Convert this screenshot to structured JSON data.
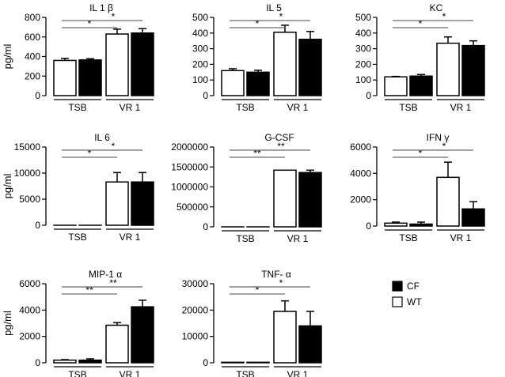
{
  "figure": {
    "y_unit_label": "pg/ml",
    "group_labels": [
      "TSB",
      "VR 1"
    ],
    "legend": [
      {
        "name": "CF",
        "color": "#000000"
      },
      {
        "name": "WT",
        "color": "#ffffff"
      }
    ]
  },
  "chart_data": [
    {
      "type": "bar",
      "title": "IL 1 β",
      "ylabel": "pg/ml",
      "ylim": [
        0,
        800
      ],
      "yticks": [
        0,
        200,
        400,
        600,
        800
      ],
      "categories": [
        "TSB",
        "VR 1"
      ],
      "series": [
        {
          "name": "WT",
          "values": [
            360,
            630
          ],
          "errors": [
            20,
            50
          ]
        },
        {
          "name": "CF",
          "values": [
            365,
            640
          ],
          "errors": [
            12,
            45
          ]
        }
      ],
      "significance": [
        {
          "label": "*",
          "from": "TSB",
          "to": "VR 1 WT"
        },
        {
          "label": "*",
          "from": "TSB",
          "to": "VR 1 CF"
        }
      ]
    },
    {
      "type": "bar",
      "title": "IL 5",
      "ylabel": "",
      "ylim": [
        0,
        500
      ],
      "yticks": [
        0,
        100,
        200,
        300,
        400,
        500
      ],
      "categories": [
        "TSB",
        "VR 1"
      ],
      "series": [
        {
          "name": "WT",
          "values": [
            160,
            405
          ],
          "errors": [
            12,
            45
          ]
        },
        {
          "name": "CF",
          "values": [
            150,
            360
          ],
          "errors": [
            12,
            50
          ]
        }
      ],
      "significance": [
        {
          "label": "*",
          "from": "TSB",
          "to": "VR 1 WT"
        },
        {
          "label": "*",
          "from": "TSB",
          "to": "VR 1 CF"
        }
      ]
    },
    {
      "type": "bar",
      "title": "KC",
      "ylabel": "",
      "ylim": [
        0,
        500
      ],
      "yticks": [
        0,
        100,
        200,
        300,
        400,
        500
      ],
      "categories": [
        "TSB",
        "VR 1"
      ],
      "series": [
        {
          "name": "WT",
          "values": [
            120,
            335
          ],
          "errors": [
            3,
            40
          ]
        },
        {
          "name": "CF",
          "values": [
            125,
            320
          ],
          "errors": [
            10,
            30
          ]
        }
      ],
      "significance": [
        {
          "label": "*",
          "from": "TSB",
          "to": "VR 1 WT"
        },
        {
          "label": "*",
          "from": "TSB",
          "to": "VR 1 CF"
        }
      ]
    },
    {
      "type": "bar",
      "title": "IL 6",
      "ylabel": "pg/ml",
      "ylim": [
        0,
        15000
      ],
      "yticks": [
        0,
        5000,
        10000,
        15000
      ],
      "categories": [
        "TSB",
        "VR 1"
      ],
      "series": [
        {
          "name": "WT",
          "values": [
            0,
            8300
          ],
          "errors": [
            0,
            1800
          ]
        },
        {
          "name": "CF",
          "values": [
            0,
            8300
          ],
          "errors": [
            0,
            1800
          ]
        }
      ],
      "significance": [
        {
          "label": "*",
          "from": "TSB",
          "to": "VR 1 WT"
        },
        {
          "label": "*",
          "from": "TSB",
          "to": "VR 1 CF"
        }
      ]
    },
    {
      "type": "bar",
      "title": "G-CSF",
      "ylabel": "",
      "ylim": [
        0,
        2000000
      ],
      "yticks": [
        0,
        500000,
        1000000,
        1500000,
        2000000
      ],
      "categories": [
        "TSB",
        "VR 1"
      ],
      "series": [
        {
          "name": "WT",
          "values": [
            0,
            1420000
          ],
          "errors": [
            0,
            0
          ]
        },
        {
          "name": "CF",
          "values": [
            0,
            1360000
          ],
          "errors": [
            0,
            60000
          ]
        }
      ],
      "significance": [
        {
          "label": "**",
          "from": "TSB",
          "to": "VR 1 WT"
        },
        {
          "label": "**",
          "from": "TSB",
          "to": "VR 1 CF"
        }
      ]
    },
    {
      "type": "bar",
      "title": "IFN γ",
      "ylabel": "",
      "ylim": [
        0,
        6000
      ],
      "yticks": [
        0,
        2000,
        4000,
        6000
      ],
      "categories": [
        "TSB",
        "VR 1"
      ],
      "series": [
        {
          "name": "WT",
          "values": [
            220,
            3700
          ],
          "errors": [
            80,
            1150
          ]
        },
        {
          "name": "CF",
          "values": [
            150,
            1300
          ],
          "errors": [
            150,
            550
          ]
        }
      ],
      "significance": [
        {
          "label": "*",
          "from": "TSB",
          "to": "VR 1 WT"
        },
        {
          "label": "*",
          "from": "TSB",
          "to": "VR 1 CF"
        }
      ]
    },
    {
      "type": "bar",
      "title": "MIP-1 α",
      "ylabel": "pg/ml",
      "ylim": [
        0,
        6000
      ],
      "yticks": [
        0,
        2000,
        4000,
        6000
      ],
      "categories": [
        "TSB",
        "VR 1"
      ],
      "series": [
        {
          "name": "WT",
          "values": [
            200,
            2850
          ],
          "errors": [
            40,
            200
          ]
        },
        {
          "name": "CF",
          "values": [
            200,
            4250
          ],
          "errors": [
            100,
            500
          ]
        }
      ],
      "significance": [
        {
          "label": "**",
          "from": "TSB",
          "to": "VR 1 WT"
        },
        {
          "label": "**",
          "from": "TSB",
          "to": "VR 1 CF"
        }
      ]
    },
    {
      "type": "bar",
      "title": "TNF- α",
      "ylabel": "",
      "ylim": [
        0,
        30000
      ],
      "yticks": [
        0,
        10000,
        20000,
        30000
      ],
      "categories": [
        "TSB",
        "VR 1"
      ],
      "series": [
        {
          "name": "WT",
          "values": [
            200,
            19500
          ],
          "errors": [
            0,
            4000
          ]
        },
        {
          "name": "CF",
          "values": [
            200,
            14000
          ],
          "errors": [
            0,
            5500
          ]
        }
      ],
      "significance": [
        {
          "label": "*",
          "from": "TSB",
          "to": "VR 1 WT"
        },
        {
          "label": "*",
          "from": "TSB",
          "to": "VR 1 CF"
        }
      ]
    }
  ]
}
